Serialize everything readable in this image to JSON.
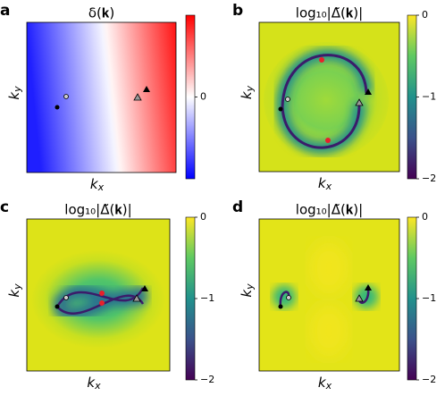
{
  "chart_data": [
    {
      "type": "heatmap",
      "panel": "a",
      "title": "δ(𝐤)",
      "xlabel": "kx",
      "ylabel": "ky",
      "colormap": "bwr",
      "clim": [
        -1,
        1
      ],
      "cticks": [
        0
      ]
    },
    {
      "type": "heatmap",
      "panel": "b",
      "title": "log₁₀|Δ̃(𝐤)|",
      "xlabel": "kx",
      "ylabel": "ky",
      "colormap": "viridis",
      "clim": [
        -2,
        0
      ],
      "cticks": [
        0,
        {
          "value": -1,
          "label": "−1"
        },
        {
          "value": -2,
          "label": "−2"
        }
      ]
    },
    {
      "type": "heatmap",
      "panel": "c",
      "title": "log₁₀|Δ̃(𝐤)|",
      "xlabel": "kx",
      "ylabel": "ky",
      "colormap": "viridis",
      "clim": [
        -2,
        0
      ],
      "cticks": [
        0,
        {
          "value": -1,
          "label": "−1"
        },
        {
          "value": -2,
          "label": "−2"
        }
      ]
    },
    {
      "type": "heatmap",
      "panel": "d",
      "title": "log₁₀|Δ̃(𝐤)|",
      "xlabel": "kx",
      "ylabel": "ky",
      "colormap": "viridis",
      "clim": [
        -2,
        0
      ],
      "cticks": [
        0,
        {
          "value": -1,
          "label": "−1"
        },
        {
          "value": -2,
          "label": "−2"
        }
      ]
    }
  ]
}
